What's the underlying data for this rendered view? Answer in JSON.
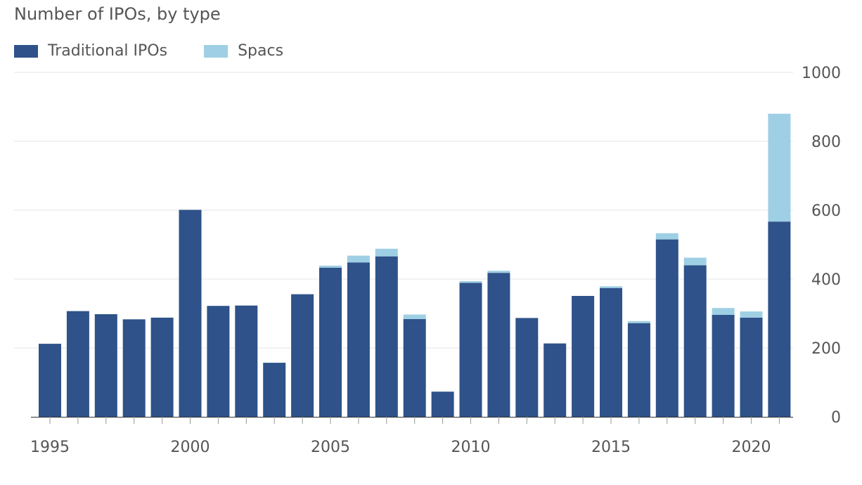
{
  "chart_data": {
    "type": "bar",
    "stacked": true,
    "title": "Number of IPOs, by type",
    "categories": [
      1995,
      1996,
      1997,
      1998,
      1999,
      2000,
      2001,
      2002,
      2003,
      2004,
      2005,
      2006,
      2007,
      2008,
      2009,
      2010,
      2011,
      2012,
      2013,
      2014,
      2015,
      2016,
      2017,
      2018,
      2019,
      2020,
      2021
    ],
    "x_tick_labels": [
      "1995",
      "2000",
      "2005",
      "2010",
      "2015",
      "2020"
    ],
    "series": [
      {
        "name": "Traditional IPOs",
        "color": "#2e5289",
        "values": [
          212,
          307,
          298,
          283,
          288,
          601,
          322,
          323,
          157,
          356,
          433,
          448,
          466,
          284,
          73,
          389,
          418,
          287,
          213,
          351,
          374,
          272,
          515,
          440,
          296,
          288,
          567
        ]
      },
      {
        "name": "Spacs",
        "color": "#9fcfe4",
        "values": [
          0,
          0,
          0,
          0,
          0,
          0,
          0,
          0,
          0,
          0,
          6,
          20,
          22,
          13,
          0,
          5,
          6,
          0,
          0,
          0,
          5,
          6,
          18,
          22,
          20,
          18,
          313
        ]
      }
    ],
    "ylim": [
      0,
      1000
    ],
    "yticks": [
      0,
      200,
      400,
      600,
      800,
      1000
    ],
    "grid": true,
    "legend_position": "top-left",
    "y_axis_position": "right"
  }
}
